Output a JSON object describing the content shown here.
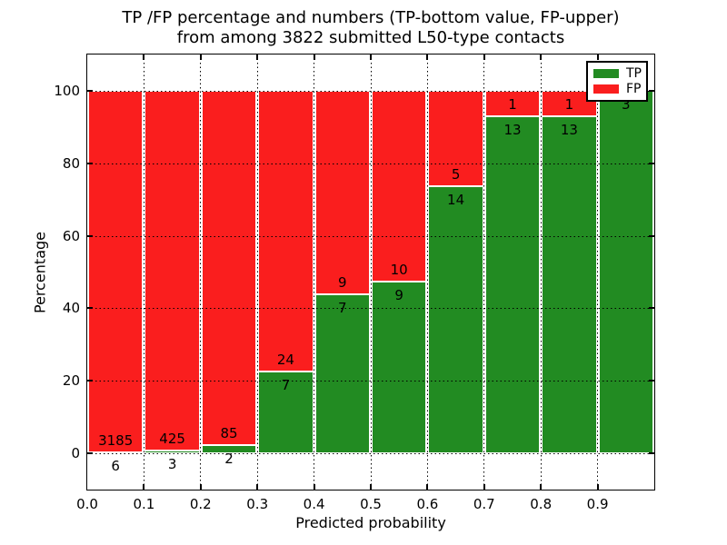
{
  "title": {
    "line1": "TP /FP percentage and numbers (TP-bottom value, FP-upper)",
    "line2": "from among 3822 submitted L50-type contacts"
  },
  "chart_data": {
    "type": "bar",
    "stacked": true,
    "normalized": "percent",
    "categories": [
      "0.0-0.1",
      "0.1-0.2",
      "0.2-0.3",
      "0.3-0.4",
      "0.4-0.5",
      "0.5-0.6",
      "0.6-0.7",
      "0.7-0.8",
      "0.8-0.9",
      "0.9-1.0"
    ],
    "series": [
      {
        "name": "TP",
        "color": "#228b22",
        "values": [
          6,
          3,
          2,
          7,
          7,
          9,
          14,
          13,
          13,
          3
        ]
      },
      {
        "name": "FP",
        "color": "#fa1e1e",
        "values": [
          3185,
          425,
          85,
          24,
          9,
          10,
          5,
          1,
          1,
          0
        ]
      }
    ],
    "xlabel": "Predicted probability",
    "ylabel": "Percentage",
    "x_ticks": [
      "0.0",
      "0.1",
      "0.2",
      "0.3",
      "0.4",
      "0.5",
      "0.6",
      "0.7",
      "0.8",
      "0.9"
    ],
    "y_ticks": [
      "0",
      "20",
      "40",
      "60",
      "80",
      "100"
    ],
    "xlim": [
      0.0,
      1.0
    ],
    "ylim": [
      -10,
      110
    ],
    "grid": "dotted",
    "bar_edge_color": "#ffffff",
    "legend": {
      "position": "upper right",
      "entries": [
        "TP",
        "FP"
      ]
    }
  }
}
